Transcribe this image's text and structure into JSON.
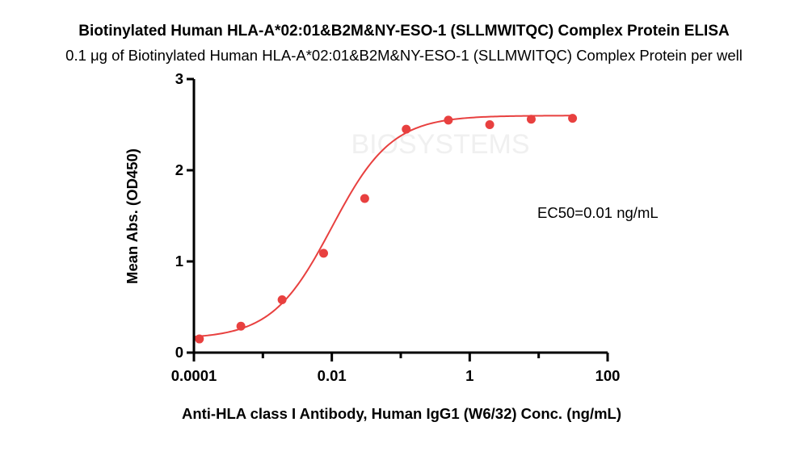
{
  "title": "Biotinylated Human HLA-A*02:01&B2M&NY-ESO-1 (SLLMWITQC) Complex Protein ELISA",
  "subtitle": "0.1 μg of Biotinylated Human HLA-A*02:01&B2M&NY-ESO-1 (SLLMWITQC) Complex Protein per well",
  "watermark": "BIOSYSTEMS",
  "colors": {
    "series": "#e8403f",
    "axis": "#000000",
    "watermark": "#f0f0f0"
  },
  "chart_data": {
    "type": "scatter",
    "xlabel": "Anti-HLA class I Antibody, Human IgG1 (W6/32) Conc. (ng/mL)",
    "ylabel": "Mean Abs. (OD450)",
    "x_scale": "log",
    "xlim": [
      0.0001,
      100
    ],
    "ylim": [
      0,
      3
    ],
    "x_ticks": [
      0.0001,
      0.01,
      1,
      100
    ],
    "x_tick_labels": [
      "0.0001",
      "0.01",
      "1",
      "100"
    ],
    "y_ticks": [
      0,
      1,
      2,
      3
    ],
    "y_tick_labels": [
      "0",
      "1",
      "2",
      "3"
    ],
    "grid": false,
    "annotation": "EC50=0.01 ng/mL",
    "series": [
      {
        "points": [
          {
            "x": 0.00012,
            "y": 0.15
          },
          {
            "x": 0.00048,
            "y": 0.29
          },
          {
            "x": 0.0019,
            "y": 0.58
          },
          {
            "x": 0.0076,
            "y": 1.09
          },
          {
            "x": 0.03,
            "y": 1.69
          },
          {
            "x": 0.12,
            "y": 2.45
          },
          {
            "x": 0.49,
            "y": 2.55
          },
          {
            "x": 1.95,
            "y": 2.5
          },
          {
            "x": 7.8,
            "y": 2.56
          },
          {
            "x": 31.0,
            "y": 2.57
          }
        ],
        "fit": {
          "model": "4PL",
          "bottom": 0.15,
          "top": 2.6,
          "ec50": 0.01,
          "hill": 1.0
        }
      }
    ]
  }
}
